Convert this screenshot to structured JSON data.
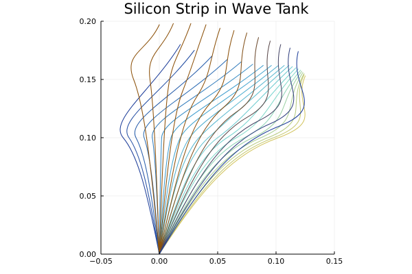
{
  "chart_data": {
    "type": "line",
    "title": "Silicon Strip in Wave Tank",
    "xlabel": "",
    "ylabel": "",
    "xlim": [
      -0.05,
      0.15
    ],
    "ylim": [
      0.0,
      0.2
    ],
    "x_ticks": [
      -0.05,
      0.0,
      0.05,
      0.1,
      0.15
    ],
    "x_tick_labels": [
      "−0.05",
      "0.00",
      "0.05",
      "0.10",
      "0.15"
    ],
    "y_ticks": [
      0.0,
      0.05,
      0.1,
      0.15,
      0.2
    ],
    "y_tick_labels": [
      "0.00",
      "0.05",
      "0.10",
      "0.15",
      "0.20"
    ],
    "grid": true,
    "legend": "none",
    "aspect": "equal",
    "colormap": [
      "#8c510a",
      "#1f3f9a",
      "#3fa0d0",
      "#7fdad0",
      "#d3c55f"
    ],
    "curve_count": 32,
    "curve_group_a": {
      "color_range": "brown-to-blue",
      "count": 12,
      "tip_points": [
        [
          0.0,
          0.197
        ],
        [
          0.012,
          0.198
        ],
        [
          0.027,
          0.198
        ],
        [
          0.04,
          0.197
        ],
        [
          0.052,
          0.194
        ],
        [
          0.064,
          0.192
        ],
        [
          0.075,
          0.19
        ],
        [
          0.085,
          0.186
        ],
        [
          0.095,
          0.183
        ],
        [
          0.104,
          0.18
        ],
        [
          0.112,
          0.177
        ],
        [
          0.119,
          0.174
        ]
      ],
      "mid_points": [
        [
          -0.022,
          0.15
        ],
        [
          -0.008,
          0.15
        ],
        [
          0.008,
          0.145
        ],
        [
          0.02,
          0.14
        ],
        [
          0.032,
          0.135
        ],
        [
          0.044,
          0.13
        ],
        [
          0.055,
          0.126
        ],
        [
          0.066,
          0.122
        ],
        [
          0.076,
          0.118
        ],
        [
          0.086,
          0.115
        ],
        [
          0.095,
          0.112
        ],
        [
          0.103,
          0.11
        ]
      ]
    },
    "curve_group_b": {
      "color_range": "blue-to-cyan-to-olive",
      "count": 20,
      "tip_points": [
        [
          0.018,
          0.18
        ],
        [
          0.03,
          0.175
        ],
        [
          0.045,
          0.17
        ],
        [
          0.058,
          0.167
        ],
        [
          0.07,
          0.165
        ],
        [
          0.08,
          0.163
        ],
        [
          0.089,
          0.162
        ],
        [
          0.096,
          0.162
        ],
        [
          0.102,
          0.162
        ],
        [
          0.107,
          0.162
        ],
        [
          0.111,
          0.162
        ],
        [
          0.114,
          0.161
        ],
        [
          0.117,
          0.16
        ],
        [
          0.119,
          0.159
        ],
        [
          0.121,
          0.158
        ],
        [
          0.122,
          0.157
        ],
        [
          0.123,
          0.156
        ],
        [
          0.124,
          0.155
        ],
        [
          0.124,
          0.154
        ],
        [
          0.125,
          0.153
        ]
      ],
      "mid_points": [
        [
          -0.031,
          0.1
        ],
        [
          -0.026,
          0.1
        ],
        [
          -0.02,
          0.1
        ],
        [
          -0.013,
          0.1
        ],
        [
          -0.006,
          0.1
        ],
        [
          0.002,
          0.1
        ],
        [
          0.01,
          0.1
        ],
        [
          0.018,
          0.1
        ],
        [
          0.026,
          0.1
        ],
        [
          0.034,
          0.1
        ],
        [
          0.042,
          0.1
        ],
        [
          0.05,
          0.1
        ],
        [
          0.058,
          0.1
        ],
        [
          0.066,
          0.1
        ],
        [
          0.073,
          0.1
        ],
        [
          0.08,
          0.1
        ],
        [
          0.087,
          0.1
        ],
        [
          0.093,
          0.1
        ],
        [
          0.098,
          0.1
        ],
        [
          0.102,
          0.1
        ]
      ]
    }
  }
}
